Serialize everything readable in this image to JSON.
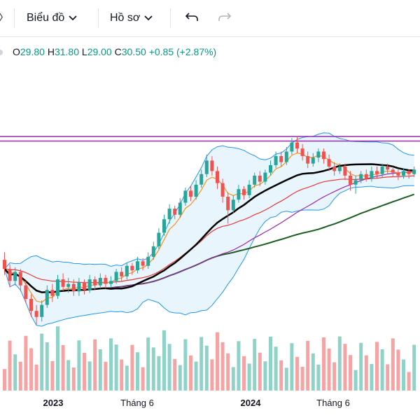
{
  "toolbar": {
    "chart_menu": "Biểu đồ",
    "profile_menu": "Hồ sơ",
    "undo_icon": "undo-icon",
    "redo_icon": "redo-icon"
  },
  "ohlc": {
    "open_label": "O",
    "open": "29.80",
    "high_label": "H",
    "high": "31.80",
    "low_label": "L",
    "low": "29.00",
    "close_label": "C",
    "close": "30.50",
    "change": "+0.85",
    "change_pct": "(+2.87%)"
  },
  "colors": {
    "up": "#26a69a",
    "down": "#ef5350",
    "volume_up": "#8fd3c8",
    "volume_down": "#f5a3a3",
    "sma20": "#000000",
    "ma_fast": "#f7931a",
    "ma_red": "#e53935",
    "ma_purple": "#9c27b0",
    "ma_green": "#1b5e20",
    "bollinger": "#2196f3",
    "bollinger_fill": "#e3f2fd",
    "resistance": "#9c27b0"
  },
  "chart_data": {
    "type": "candlestick",
    "x_tick_labels": [
      {
        "label": "2023",
        "major": true
      },
      {
        "label": "Tháng 6",
        "major": false
      },
      {
        "label": "2024",
        "major": true
      },
      {
        "label": "Tháng 6",
        "major": false
      }
    ],
    "resistance_levels": [
      31.8,
      31.5
    ],
    "candles": [
      [
        23.6,
        23.0,
        24.1,
        22.6
      ],
      [
        23.0,
        22.2,
        23.3,
        21.8
      ],
      [
        22.2,
        22.8,
        23.1,
        21.9
      ],
      [
        22.8,
        21.9,
        23.0,
        21.5
      ],
      [
        21.9,
        21.0,
        22.2,
        20.7
      ],
      [
        21.0,
        20.2,
        21.3,
        19.8
      ],
      [
        20.2,
        19.8,
        20.6,
        19.3
      ],
      [
        19.8,
        20.6,
        20.9,
        19.5
      ],
      [
        20.6,
        21.6,
        21.9,
        20.4
      ],
      [
        21.6,
        21.2,
        22.0,
        20.8
      ],
      [
        21.2,
        22.3,
        22.6,
        21.0
      ],
      [
        22.3,
        21.8,
        22.7,
        21.5
      ],
      [
        21.8,
        22.0,
        22.4,
        21.4
      ],
      [
        22.0,
        21.5,
        22.3,
        21.2
      ],
      [
        21.5,
        22.1,
        22.4,
        21.2
      ],
      [
        22.1,
        21.6,
        22.3,
        21.3
      ],
      [
        21.6,
        22.3,
        22.6,
        21.4
      ],
      [
        22.3,
        21.9,
        22.5,
        21.6
      ],
      [
        21.9,
        22.4,
        22.7,
        21.7
      ],
      [
        22.4,
        22.0,
        22.6,
        21.7
      ],
      [
        22.0,
        22.2,
        22.5,
        21.8
      ],
      [
        22.2,
        22.8,
        23.0,
        22.0
      ],
      [
        22.8,
        22.5,
        23.1,
        22.2
      ],
      [
        22.5,
        23.2,
        23.4,
        22.3
      ],
      [
        23.2,
        22.9,
        23.4,
        22.6
      ],
      [
        22.9,
        23.5,
        23.8,
        22.7
      ],
      [
        23.5,
        23.2,
        23.7,
        22.9
      ],
      [
        23.2,
        23.8,
        24.1,
        23.0
      ],
      [
        23.8,
        24.5,
        24.8,
        23.6
      ],
      [
        24.5,
        25.4,
        25.7,
        24.3
      ],
      [
        25.4,
        26.3,
        26.6,
        25.2
      ],
      [
        26.3,
        27.0,
        27.3,
        26.0
      ],
      [
        27.0,
        26.6,
        27.2,
        26.3
      ],
      [
        26.6,
        27.4,
        27.7,
        26.4
      ],
      [
        27.4,
        28.2,
        28.4,
        27.2
      ],
      [
        28.2,
        27.8,
        28.5,
        27.5
      ],
      [
        27.8,
        28.6,
        28.9,
        27.6
      ],
      [
        28.6,
        29.3,
        29.6,
        28.4
      ],
      [
        29.3,
        30.2,
        30.6,
        29.1
      ],
      [
        30.2,
        29.5,
        30.5,
        29.2
      ],
      [
        29.5,
        28.7,
        29.8,
        28.3
      ],
      [
        28.7,
        27.8,
        29.0,
        27.4
      ],
      [
        27.8,
        26.9,
        28.1,
        26.0
      ],
      [
        26.9,
        27.6,
        27.9,
        26.7
      ],
      [
        27.6,
        28.3,
        28.6,
        27.4
      ],
      [
        28.3,
        27.9,
        28.5,
        27.6
      ],
      [
        27.9,
        28.6,
        28.9,
        27.7
      ],
      [
        28.6,
        29.2,
        29.4,
        28.4
      ],
      [
        29.2,
        28.8,
        29.5,
        28.5
      ],
      [
        28.8,
        29.4,
        29.6,
        28.6
      ],
      [
        29.4,
        29.9,
        30.2,
        29.2
      ],
      [
        29.9,
        30.5,
        30.8,
        29.7
      ],
      [
        30.5,
        30.1,
        30.8,
        29.8
      ],
      [
        30.1,
        30.8,
        31.1,
        29.9
      ],
      [
        30.8,
        31.4,
        31.7,
        30.6
      ],
      [
        31.4,
        31.0,
        31.8,
        30.7
      ],
      [
        31.0,
        30.5,
        31.3,
        30.2
      ],
      [
        30.5,
        30.0,
        30.8,
        29.7
      ],
      [
        30.0,
        30.4,
        30.7,
        29.8
      ],
      [
        30.4,
        30.8,
        31.0,
        30.1
      ],
      [
        30.8,
        30.3,
        31.0,
        30.0
      ],
      [
        30.3,
        29.8,
        30.6,
        29.5
      ],
      [
        29.8,
        29.5,
        30.1,
        29.2
      ],
      [
        29.5,
        29.8,
        30.0,
        29.3
      ],
      [
        29.8,
        29.2,
        30.0,
        28.9
      ],
      [
        29.2,
        28.6,
        29.5,
        28.2
      ],
      [
        28.6,
        28.9,
        29.2,
        28.0
      ],
      [
        28.9,
        29.3,
        29.5,
        28.7
      ],
      [
        29.3,
        29.0,
        29.6,
        28.8
      ],
      [
        29.0,
        29.5,
        29.8,
        28.8
      ],
      [
        29.5,
        29.3,
        29.8,
        29.0
      ],
      [
        29.3,
        29.8,
        30.0,
        29.1
      ],
      [
        29.8,
        29.6,
        30.0,
        29.3
      ],
      [
        29.6,
        29.4,
        29.8,
        29.1
      ],
      [
        29.4,
        29.2,
        29.6,
        28.9
      ],
      [
        29.2,
        29.5,
        29.7,
        29.0
      ],
      [
        29.5,
        29.3,
        29.6,
        29.0
      ],
      [
        29.3,
        29.6,
        29.8,
        29.1
      ]
    ]
  }
}
